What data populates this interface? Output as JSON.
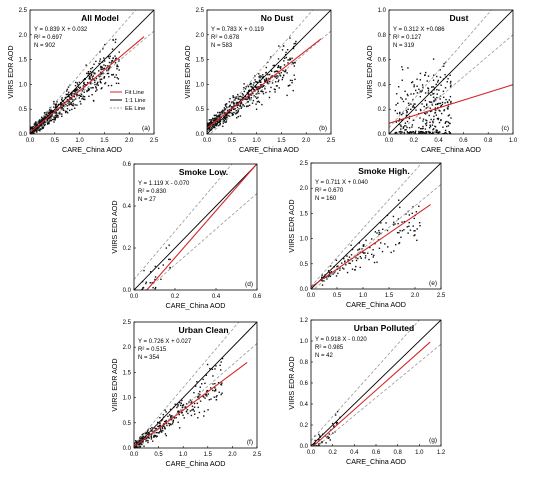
{
  "figure": {
    "legend_items": [
      {
        "label": "Fit Line",
        "color": "#d62728",
        "style": "solid"
      },
      {
        "label": "1:1 Line",
        "color": "#000000",
        "style": "solid"
      },
      {
        "label": "EE Line",
        "color": "#999999",
        "style": "dashed"
      }
    ],
    "colors": {
      "fit": "#d62728",
      "one_to_one": "#000000",
      "ee": "#999999",
      "points": "#111111"
    }
  },
  "chart_data": [
    {
      "type": "scatter",
      "panel_label": "(a)",
      "title": "All Model",
      "xlabel": "CARE_China AOD",
      "ylabel": "VIIRS EDR AOD",
      "xlim": [
        0,
        2.5
      ],
      "ylim": [
        0,
        2.5
      ],
      "xticks": [
        "0.0",
        "0.5",
        "1.0",
        "1.5",
        "2.0",
        "2.5"
      ],
      "yticks": [
        "0.0",
        "0.5",
        "1.0",
        "1.5",
        "2.0",
        "2.5"
      ],
      "stats": [
        "Y = 0.839 X + 0.032",
        "R² = 0.697",
        "N = 902"
      ],
      "fit": {
        "slope": 0.839,
        "intercept": 0.032
      },
      "n_points": 902,
      "show_legend": true
    },
    {
      "type": "scatter",
      "panel_label": "(b)",
      "title": "No Dust",
      "xlabel": "CARE_China AOD",
      "ylabel": "VIIRS EDR AOD",
      "xlim": [
        0,
        2.5
      ],
      "ylim": [
        0,
        2.5
      ],
      "xticks": [
        "0.0",
        "0.5",
        "1.0",
        "1.5",
        "2.0",
        "2.5"
      ],
      "yticks": [
        "0.0",
        "0.5",
        "1.0",
        "1.5",
        "2.0",
        "2.5"
      ],
      "stats": [
        "Y = 0.783 X + 0.119",
        "R² = 0.678",
        "N = 583"
      ],
      "fit": {
        "slope": 0.783,
        "intercept": 0.119
      },
      "n_points": 583
    },
    {
      "type": "scatter",
      "panel_label": "(c)",
      "title": "Dust",
      "xlabel": "CARE_China AOD",
      "ylabel": "VIIRS EDR AOD",
      "xlim": [
        0,
        1.0
      ],
      "ylim": [
        0,
        1.0
      ],
      "xticks": [
        "0.0",
        "0.2",
        "0.4",
        "0.6",
        "0.8",
        "1.0"
      ],
      "yticks": [
        "0.0",
        "0.2",
        "0.4",
        "0.6",
        "0.8",
        "1.0"
      ],
      "stats": [
        "Y = 0.312 X +0.086",
        "R² = 0.127",
        "N = 319"
      ],
      "fit": {
        "slope": 0.312,
        "intercept": 0.086
      },
      "n_points": 319
    },
    {
      "type": "scatter",
      "panel_label": "(d)",
      "title": "Smoke Low.",
      "xlabel": "CARE_China AOD",
      "ylabel": "VIIRS EDR AOD",
      "xlim": [
        0,
        0.6
      ],
      "ylim": [
        0,
        0.6
      ],
      "xticks": [
        "0.0",
        "0.2",
        "0.4",
        "0.6"
      ],
      "yticks": [
        "0.0",
        "0.2",
        "0.4",
        "0.6"
      ],
      "stats": [
        "Y = 1.119 X - 0.070",
        "R² = 0.830",
        "N = 27"
      ],
      "fit": {
        "slope": 1.119,
        "intercept": -0.07
      },
      "n_points": 27
    },
    {
      "type": "scatter",
      "panel_label": "(e)",
      "title": "Smoke High.",
      "xlabel": "CARE_China AOD",
      "ylabel": "VIIRS EDR AOD",
      "xlim": [
        0,
        2.5
      ],
      "ylim": [
        0,
        2.5
      ],
      "xticks": [
        "0.0",
        "0.5",
        "1.0",
        "1.5",
        "2.0",
        "2.5"
      ],
      "yticks": [
        "0.0",
        "0.5",
        "1.0",
        "1.5",
        "2.0",
        "2.5"
      ],
      "stats": [
        "Y = 0.711 X + 0.040",
        "R² = 0.670",
        "N = 160"
      ],
      "fit": {
        "slope": 0.711,
        "intercept": 0.04
      },
      "n_points": 160
    },
    {
      "type": "scatter",
      "panel_label": "(f)",
      "title": "Urban Clean",
      "xlabel": "CARE_China AOD",
      "ylabel": "VIIRS EDR AOD",
      "xlim": [
        0,
        2.5
      ],
      "ylim": [
        0,
        2.5
      ],
      "xticks": [
        "0.0",
        "0.5",
        "1.0",
        "1.5",
        "2.0",
        "2.5"
      ],
      "yticks": [
        "0.0",
        "0.5",
        "1.0",
        "1.5",
        "2.0",
        "2.5"
      ],
      "stats": [
        "Y = 0.726 X + 0.027",
        "R² = 0.515",
        "N = 354"
      ],
      "fit": {
        "slope": 0.726,
        "intercept": 0.027
      },
      "n_points": 354
    },
    {
      "type": "scatter",
      "panel_label": "(g)",
      "title": "Urban Polluted",
      "xlabel": "CARE_China AOD",
      "ylabel": "VIIRS EDR AOD",
      "xlim": [
        0,
        1.2
      ],
      "ylim": [
        0,
        1.2
      ],
      "xticks": [
        "0.0",
        "0.2",
        "0.4",
        "0.6",
        "0.8",
        "1.0",
        "1.2"
      ],
      "yticks": [
        "0.0",
        "0.2",
        "0.4",
        "0.6",
        "0.8",
        "1.0",
        "1.2"
      ],
      "stats": [
        "Y = 0.918 X - 0.020",
        "R² = 0.985",
        "N = 42"
      ],
      "fit": {
        "slope": 0.918,
        "intercept": -0.02
      },
      "n_points": 42
    }
  ]
}
